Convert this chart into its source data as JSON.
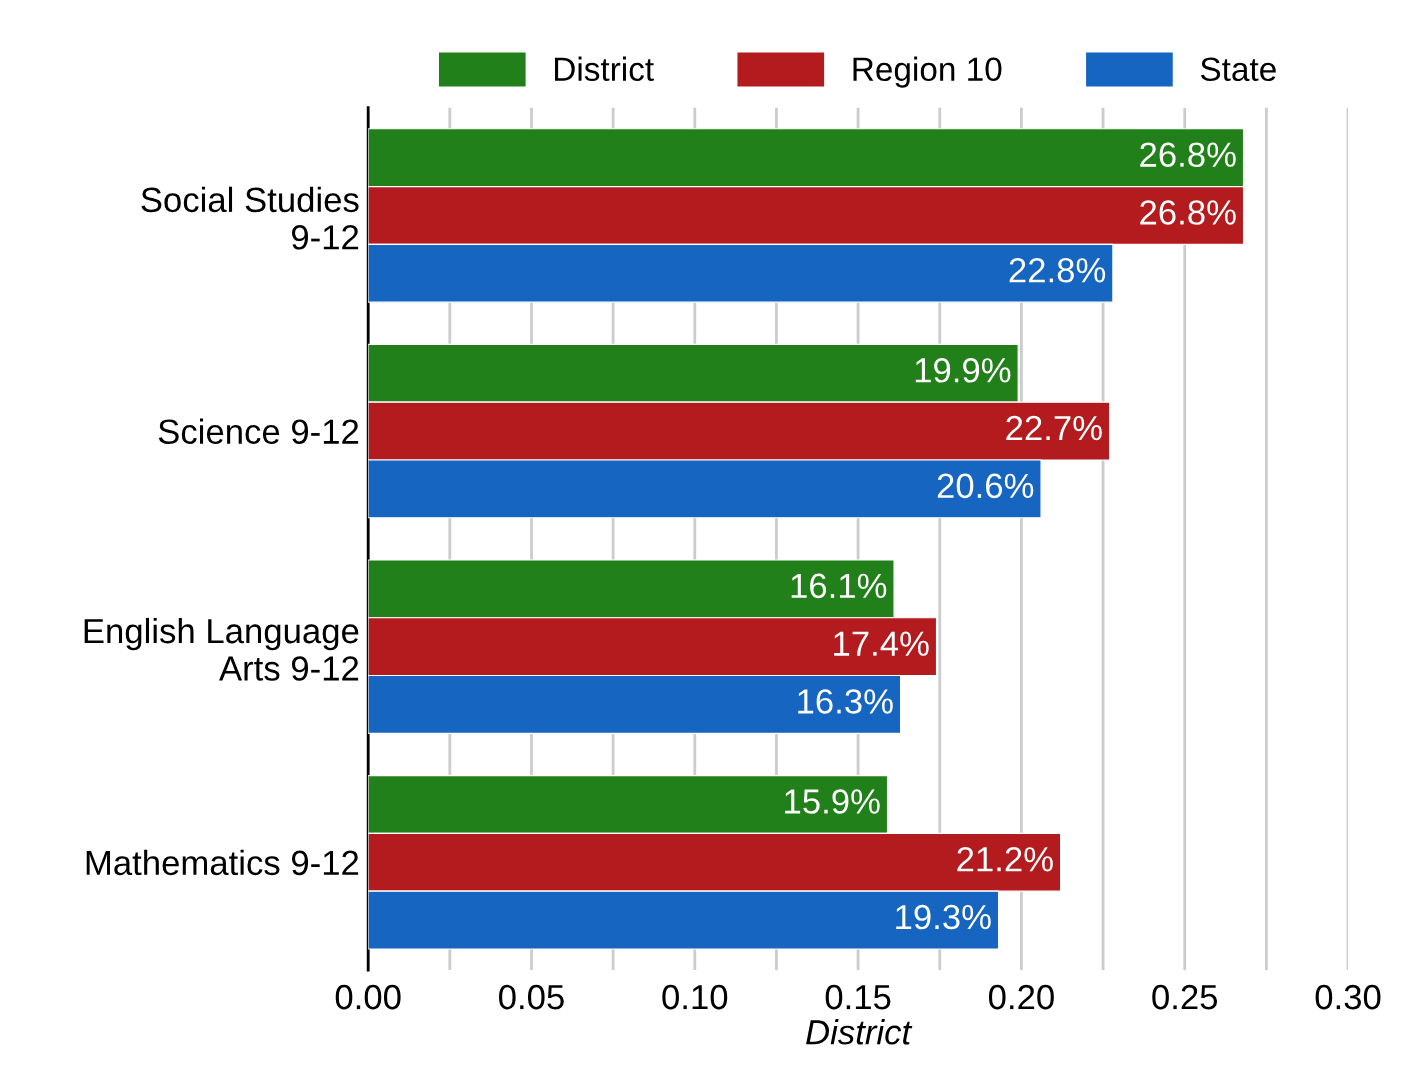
{
  "chart_data": {
    "type": "bar",
    "orientation": "horizontal",
    "xlabel": "District",
    "categories": [
      "Social Studies 9-12",
      "Science 9-12",
      "English Language Arts 9-12",
      "Mathematics 9-12"
    ],
    "series": [
      {
        "name": "District",
        "color": "#218019",
        "values": [
          0.268,
          0.199,
          0.161,
          0.159
        ],
        "value_labels": [
          "26.8%",
          "19.9%",
          "16.1%",
          "15.9%"
        ]
      },
      {
        "name": "Region 10",
        "color": "#b31b1e",
        "values": [
          0.268,
          0.227,
          0.174,
          0.212
        ],
        "value_labels": [
          "26.8%",
          "22.7%",
          "17.4%",
          "21.2%"
        ]
      },
      {
        "name": "State",
        "color": "#1565c1",
        "values": [
          0.228,
          0.206,
          0.163,
          0.193
        ],
        "value_labels": [
          "22.8%",
          "20.6%",
          "16.3%",
          "19.3%"
        ]
      }
    ],
    "xlim": [
      0,
      0.3
    ],
    "xticks": [
      {
        "value": 0,
        "label": "0.00"
      },
      {
        "value": 0.025,
        "label": null
      },
      {
        "value": 0.05,
        "label": "0.05"
      },
      {
        "value": 0.075,
        "label": null
      },
      {
        "value": 0.1,
        "label": "0.10"
      },
      {
        "value": 0.125,
        "label": null
      },
      {
        "value": 0.15,
        "label": "0.15"
      },
      {
        "value": 0.175,
        "label": null
      },
      {
        "value": 0.2,
        "label": "0.20"
      },
      {
        "value": 0.225,
        "label": null
      },
      {
        "value": 0.25,
        "label": "0.25"
      },
      {
        "value": 0.275,
        "label": null
      },
      {
        "value": 0.3,
        "label": "0.30"
      }
    ],
    "grid": "x",
    "legend": "top"
  }
}
